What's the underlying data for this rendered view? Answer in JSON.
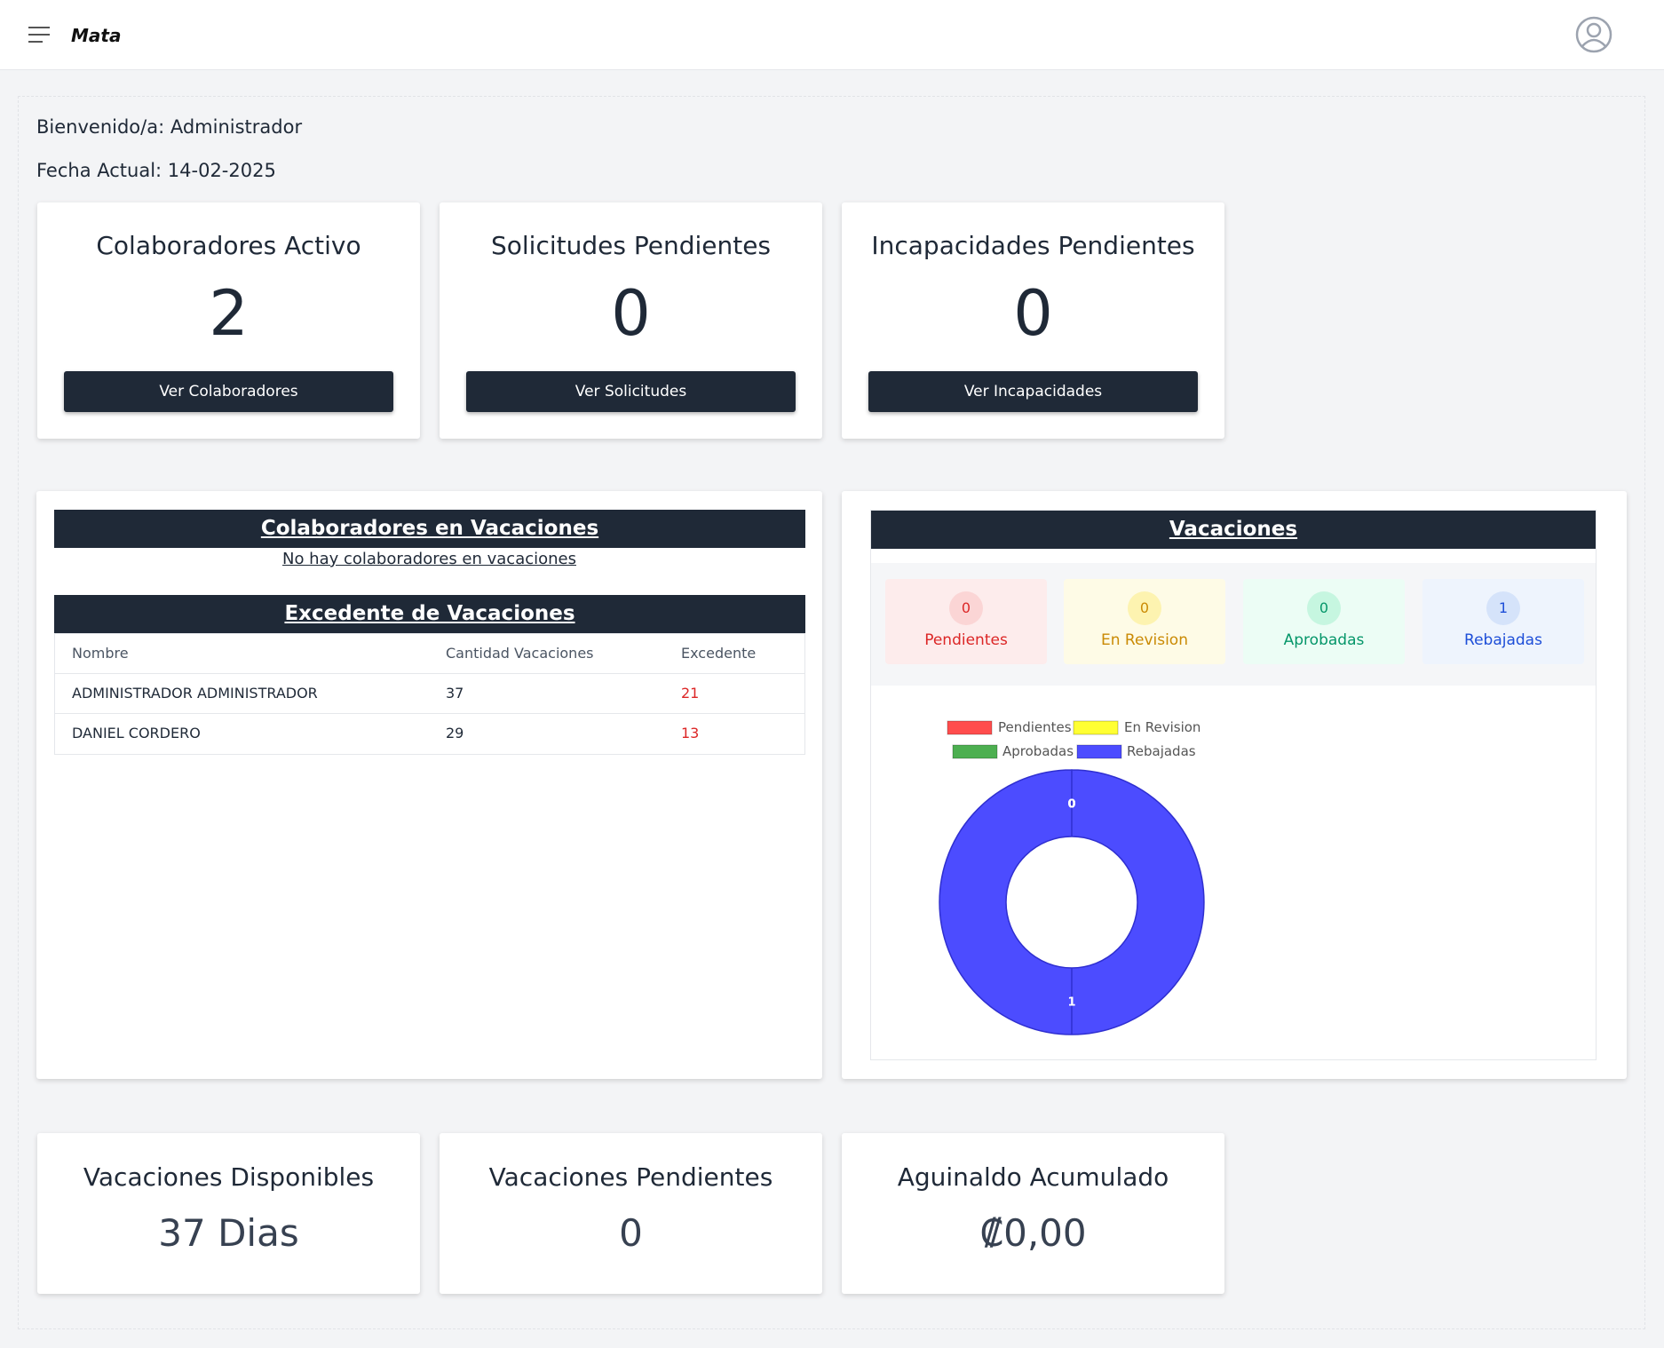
{
  "header": {
    "logo": "Mata"
  },
  "welcome": "Bienvenido/a: Administrador",
  "date": "Fecha Actual: 14-02-2025",
  "summary_cards": [
    {
      "title": "Colaboradores Activo",
      "value": 2,
      "button": "Ver Colaboradores"
    },
    {
      "title": "Solicitudes Pendientes",
      "value": 0,
      "button": "Ver Solicitudes"
    },
    {
      "title": "Incapacidades Pendientes",
      "value": 0,
      "button": "Ver Incapacidades"
    }
  ],
  "vacation_panel": {
    "title": "Colaboradores en Vacaciones",
    "empty_message": "No hay colaboradores en vacaciones"
  },
  "excess_table": {
    "title": "Excedente de Vacaciones",
    "columns": [
      "Nombre",
      "Cantidad Vacaciones",
      "Excedente"
    ],
    "rows": [
      [
        "ADMINISTRADOR ADMINISTRADOR",
        37,
        21
      ],
      [
        "DANIEL CORDERO",
        29,
        13
      ]
    ]
  },
  "vacation_status": {
    "title": "Vacaciones",
    "cards": [
      {
        "label": "Pendientes",
        "count": 0
      },
      {
        "label": "En Revision",
        "count": 0
      },
      {
        "label": "Aprobadas",
        "count": 0
      },
      {
        "label": "Rebajadas",
        "count": 1
      }
    ]
  },
  "chart_data": {
    "type": "doughnut",
    "categories": [
      "Pendientes",
      "En Revision",
      "Aprobadas",
      "Rebajadas"
    ],
    "values": [
      0,
      0,
      0,
      1
    ],
    "colors": [
      "#ff4d4d",
      "#ffff33",
      "#4caf50",
      "#4c4cff"
    ]
  },
  "bottom_cards": [
    {
      "title": "Vacaciones Disponibles",
      "value": "37 Dias"
    },
    {
      "title": "Vacaciones Pendientes",
      "value": 0
    },
    {
      "title": "Aguinaldo Acumulado",
      "value": "₡0,00"
    }
  ]
}
